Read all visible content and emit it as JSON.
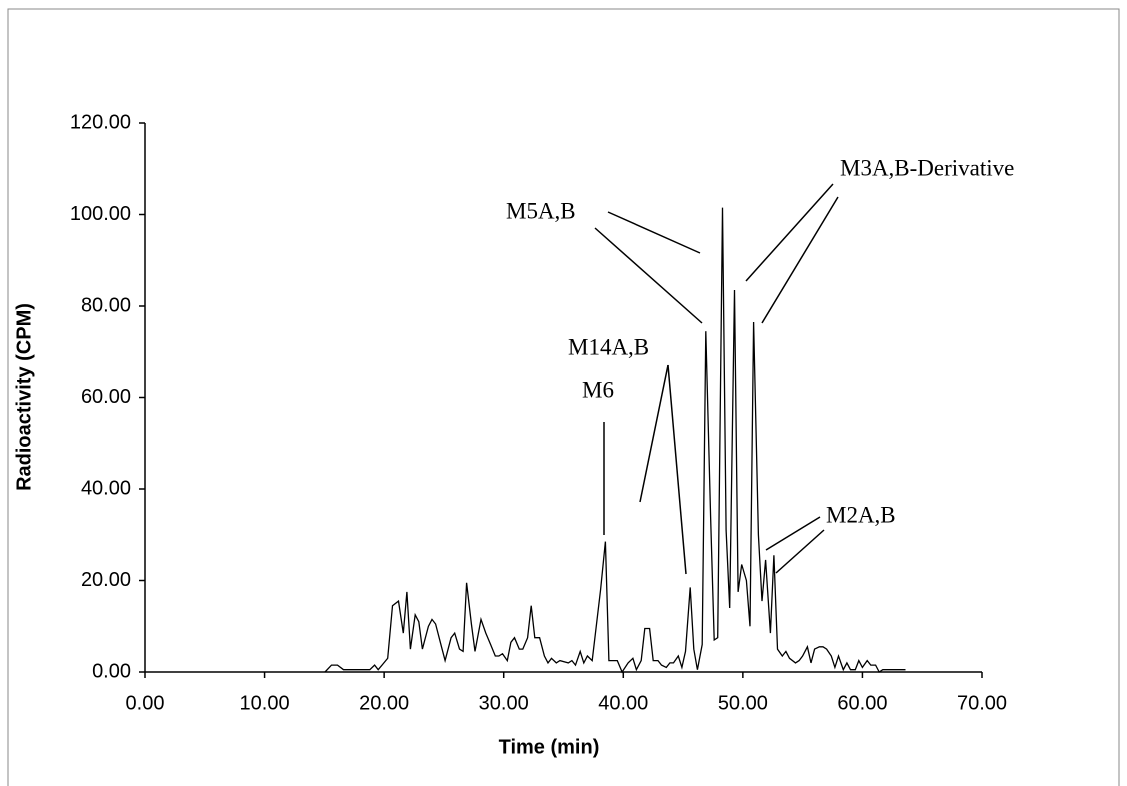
{
  "chart_data": {
    "type": "line",
    "xlabel": "Time (min)",
    "ylabel": "Radioactivity (CPM)",
    "x": [
      15.05,
      15.6,
      16.1,
      16.6,
      18.8,
      19.2,
      19.5,
      20.3,
      20.7,
      21.2,
      21.6,
      21.9,
      22.2,
      22.6,
      22.9,
      23.2,
      23.7,
      24.0,
      24.3,
      24.8,
      25.1,
      25.6,
      25.9,
      26.3,
      26.6,
      26.9,
      27.3,
      27.6,
      28.1,
      28.5,
      28.9,
      29.3,
      29.6,
      29.9,
      30.3,
      30.6,
      30.9,
      31.3,
      31.6,
      32.0,
      32.3,
      32.6,
      33.0,
      33.4,
      33.7,
      34.0,
      34.4,
      34.7,
      35.4,
      35.7,
      36.0,
      36.4,
      36.7,
      37.0,
      37.4,
      38.1,
      38.5,
      38.8,
      39.5,
      39.9,
      40.4,
      40.8,
      41.1,
      41.5,
      41.8,
      42.2,
      42.5,
      42.9,
      43.2,
      43.6,
      43.9,
      44.2,
      44.6,
      44.9,
      45.2,
      45.6,
      45.9,
      46.2,
      46.6,
      46.9,
      47.3,
      47.6,
      47.9,
      48.3,
      48.6,
      48.9,
      49.3,
      49.6,
      49.9,
      50.3,
      50.6,
      50.9,
      51.3,
      51.6,
      51.9,
      52.3,
      52.6,
      52.9,
      53.3,
      53.6,
      53.9,
      54.4,
      54.7,
      55.0,
      55.4,
      55.7,
      56.0,
      56.4,
      56.7,
      57.0,
      57.4,
      57.7,
      58.0,
      58.4,
      58.7,
      59.0,
      59.4,
      59.7,
      60.0,
      60.4,
      60.7,
      61.1,
      61.4,
      61.7,
      63.6
    ],
    "series": [
      {
        "name": "Radioactivity",
        "color": "#000000",
        "values": [
          0,
          1.5,
          1.5,
          0.5,
          0.5,
          1.5,
          0.5,
          3,
          14.5,
          15.5,
          8.5,
          17.5,
          5,
          12.5,
          11,
          5,
          10,
          11.5,
          10.5,
          5.5,
          2.5,
          7.5,
          8.5,
          5,
          4.5,
          19.5,
          10.5,
          4.5,
          11.5,
          8.5,
          6,
          3.5,
          3.5,
          4,
          2.5,
          6.5,
          7.5,
          5,
          5,
          7.5,
          14.5,
          7.5,
          7.5,
          3.5,
          2,
          3,
          2,
          2.5,
          2,
          2.5,
          1.5,
          4.5,
          2,
          3.5,
          2.5,
          18,
          28.5,
          2.5,
          2.5,
          0,
          2,
          3,
          0.5,
          2.5,
          9.5,
          9.5,
          2.5,
          2.5,
          1.5,
          1,
          2,
          2,
          3.5,
          1,
          4.5,
          18.5,
          5,
          0.5,
          6,
          74.5,
          34,
          7,
          7.5,
          101.5,
          31,
          14,
          83.5,
          17.5,
          23.5,
          20,
          10,
          76.5,
          30,
          15.5,
          24.5,
          8.5,
          25.5,
          5,
          3.5,
          4.5,
          3,
          2,
          2.5,
          3.5,
          5.5,
          2,
          5,
          5.5,
          5.5,
          5,
          3.5,
          1,
          3.5,
          0.5,
          2,
          0.5,
          0.5,
          2.5,
          1,
          2.5,
          1.5,
          1.5,
          0,
          0.5,
          0.5
        ]
      }
    ],
    "xlim": [
      0,
      70
    ],
    "xticks": [
      {
        "value": 0,
        "label": "0.00"
      },
      {
        "value": 10,
        "label": "10.00"
      },
      {
        "value": 20,
        "label": "20.00"
      },
      {
        "value": 30,
        "label": "30.00"
      },
      {
        "value": 40,
        "label": "40.00"
      },
      {
        "value": 50,
        "label": "50.00"
      },
      {
        "value": 60,
        "label": "60.00"
      },
      {
        "value": 70,
        "label": "70.00"
      }
    ],
    "ylim": [
      0,
      120
    ],
    "yticks": [
      {
        "value": 0,
        "label": "0.00"
      },
      {
        "value": 20,
        "label": "20.00"
      },
      {
        "value": 40,
        "label": "40.00"
      },
      {
        "value": 60,
        "label": "60.00"
      },
      {
        "value": 80,
        "label": "80.00"
      },
      {
        "value": 100,
        "label": "100.00"
      },
      {
        "value": 120,
        "label": "120.00"
      }
    ],
    "annotations": [
      "M5A,B",
      "M3A,B-Derivative",
      "M14A,B",
      "M6",
      "M2A,B"
    ]
  }
}
